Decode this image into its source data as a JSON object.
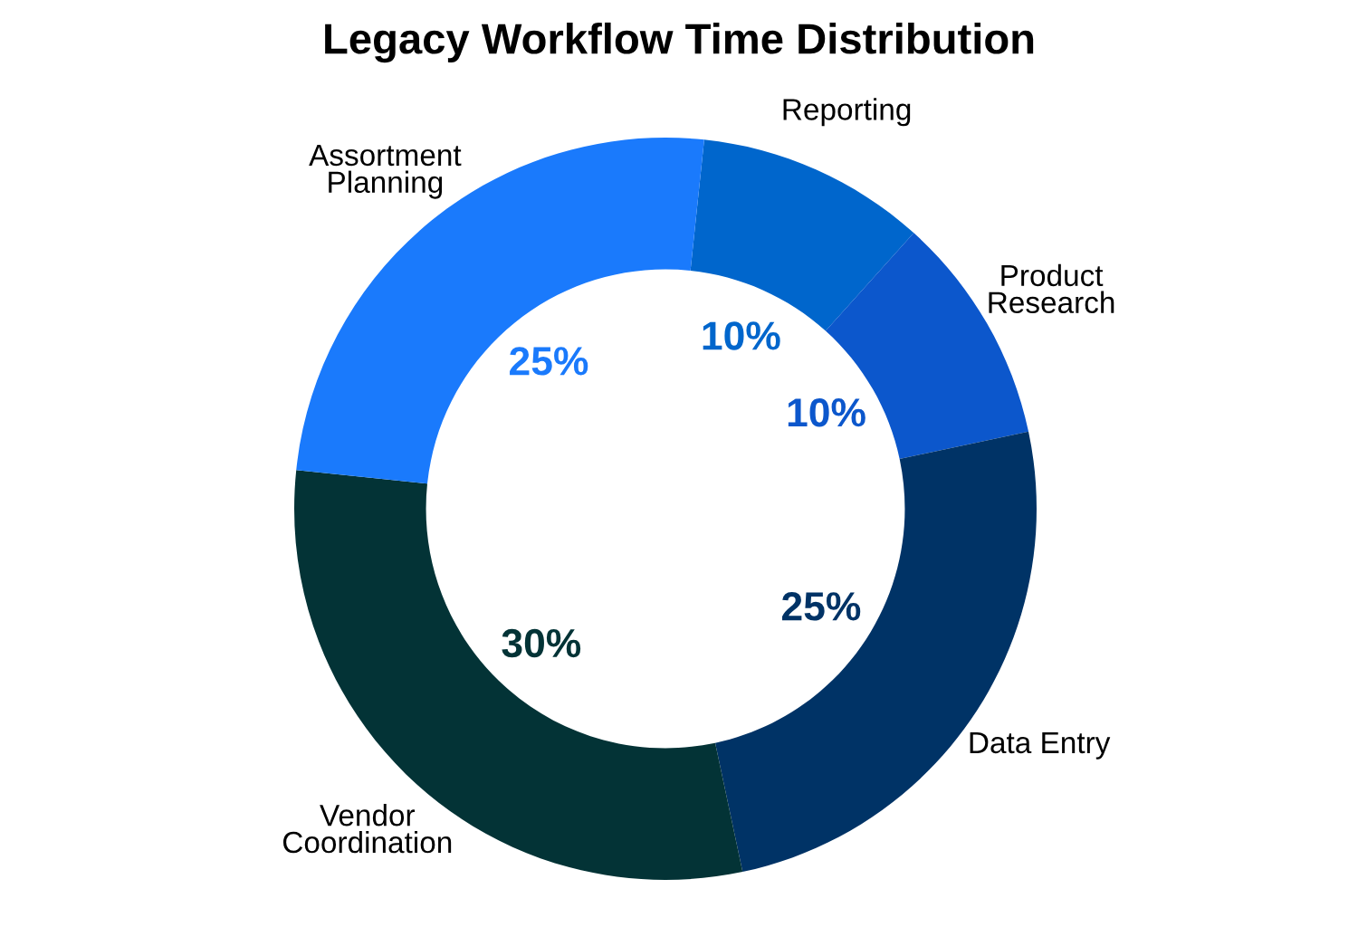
{
  "chart_data": {
    "type": "donut",
    "title": "Legacy Workflow Time Distribution",
    "categories": [
      "Reporting",
      "Product\nResearch",
      "Data Entry",
      "Vendor\nCoordination",
      "Assortment\nPlanning"
    ],
    "values": [
      10,
      10,
      25,
      30,
      25
    ],
    "value_labels": [
      "10%",
      "10%",
      "25%",
      "30%",
      "25%"
    ],
    "colors": [
      "#0066cc",
      "#0c57cc",
      "#003366",
      "#033336",
      "#1a7afc"
    ],
    "legend": false
  }
}
